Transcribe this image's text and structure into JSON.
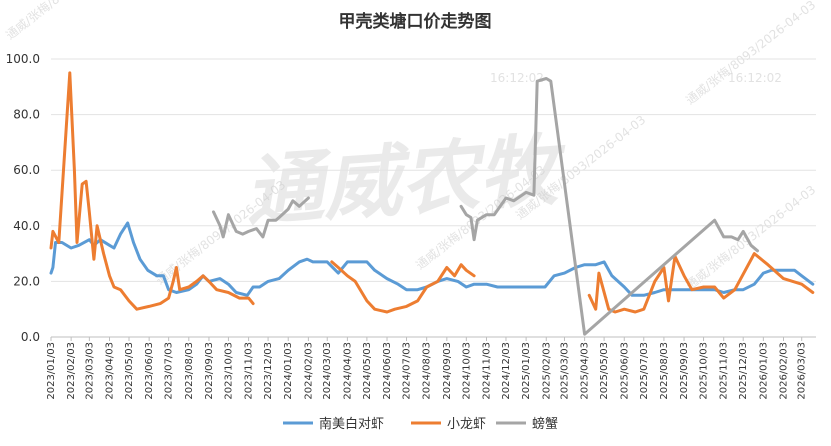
{
  "chart_data": {
    "type": "line",
    "title": "甲壳类塘口价走势图",
    "xlabel": "",
    "ylabel": "",
    "ylim": [
      0,
      100
    ],
    "yticks": [
      "0.0",
      "20.0",
      "40.0",
      "60.0",
      "80.0",
      "100.0"
    ],
    "xticks": [
      "2023/01/03",
      "2023/02/03",
      "2023/03/03",
      "2023/04/03",
      "2023/05/03",
      "2023/06/03",
      "2023/07/03",
      "2023/08/03",
      "2023/09/03",
      "2023/10/03",
      "2023/11/03",
      "2023/12/03",
      "2024/01/03",
      "2024/02/03",
      "2024/03/03",
      "2024/04/03",
      "2024/05/03",
      "2024/06/03",
      "2024/07/03",
      "2024/08/03",
      "2024/09/03",
      "2024/10/03",
      "2024/11/03",
      "2024/12/03",
      "2025/01/03",
      "2025/02/03",
      "2025/03/03",
      "2025/04/03",
      "2025/05/03",
      "2025/06/03",
      "2025/07/03",
      "2025/08/03",
      "2025/09/03",
      "2025/10/03",
      "2025/11/03",
      "2025/12/03",
      "2026/01/03",
      "2026/02/03",
      "2026/03/03"
    ],
    "grid": true,
    "legend_position": "bottom",
    "series": [
      {
        "name": "南美白对虾",
        "color": "#5b9bd5",
        "points": [
          [
            "2023/01/03",
            23
          ],
          [
            "2023/01/06",
            25
          ],
          [
            "2023/01/10",
            34
          ],
          [
            "2023/01/20",
            34
          ],
          [
            "2023/02/03",
            32
          ],
          [
            "2023/02/15",
            33
          ],
          [
            "2023/03/03",
            35
          ],
          [
            "2023/03/10",
            33
          ],
          [
            "2023/03/20",
            35
          ],
          [
            "2023/04/03",
            33
          ],
          [
            "2023/04/10",
            32
          ],
          [
            "2023/04/20",
            37
          ],
          [
            "2023/05/01",
            41
          ],
          [
            "2023/05/10",
            34
          ],
          [
            "2023/05/20",
            28
          ],
          [
            "2023/06/01",
            24
          ],
          [
            "2023/06/15",
            22
          ],
          [
            "2023/06/25",
            22
          ],
          [
            "2023/07/03",
            17
          ],
          [
            "2023/07/15",
            16
          ],
          [
            "2023/08/03",
            17
          ],
          [
            "2023/08/15",
            19
          ],
          [
            "2023/08/25",
            22
          ],
          [
            "2023/09/03",
            20
          ],
          [
            "2023/09/20",
            21
          ],
          [
            "2023/10/03",
            19
          ],
          [
            "2023/10/15",
            16
          ],
          [
            "2023/11/01",
            15
          ],
          [
            "2023/11/10",
            18
          ],
          [
            "2023/11/20",
            18
          ],
          [
            "2023/12/03",
            20
          ],
          [
            "2023/12/20",
            21
          ],
          [
            "2024/01/03",
            24
          ],
          [
            "2024/01/20",
            27
          ],
          [
            "2024/02/01",
            28
          ],
          [
            "2024/02/10",
            27
          ],
          [
            "2024/03/03",
            27
          ],
          [
            "2024/03/20",
            23
          ],
          [
            "2024/04/03",
            27
          ],
          [
            "2024/04/20",
            27
          ],
          [
            "2024/05/03",
            27
          ],
          [
            "2024/05/15",
            24
          ],
          [
            "2024/06/03",
            21
          ],
          [
            "2024/06/20",
            19
          ],
          [
            "2024/07/03",
            17
          ],
          [
            "2024/07/20",
            17
          ],
          [
            "2024/08/03",
            18
          ],
          [
            "2024/08/20",
            20
          ],
          [
            "2024/09/03",
            21
          ],
          [
            "2024/09/20",
            20
          ],
          [
            "2024/10/03",
            18
          ],
          [
            "2024/10/15",
            19
          ],
          [
            "2024/11/03",
            19
          ],
          [
            "2024/11/20",
            18
          ],
          [
            "2024/12/03",
            18
          ],
          [
            "2024/12/20",
            18
          ],
          [
            "2025/01/03",
            18
          ],
          [
            "2025/01/20",
            18
          ],
          [
            "2025/02/01",
            18
          ],
          [
            "2025/02/15",
            22
          ],
          [
            "2025/03/03",
            23
          ],
          [
            "2025/03/20",
            25
          ],
          [
            "2025/04/03",
            26
          ],
          [
            "2025/04/20",
            26
          ],
          [
            "2025/05/03",
            27
          ],
          [
            "2025/05/15",
            22
          ],
          [
            "2025/06/03",
            18
          ],
          [
            "2025/06/15",
            15
          ],
          [
            "2025/07/03",
            15
          ],
          [
            "2025/07/20",
            16
          ],
          [
            "2025/08/03",
            17
          ],
          [
            "2025/08/20",
            17
          ],
          [
            "2025/09/03",
            17
          ],
          [
            "2025/09/20",
            17
          ],
          [
            "2025/10/03",
            17
          ],
          [
            "2025/10/20",
            17
          ],
          [
            "2025/11/03",
            16
          ],
          [
            "2025/11/20",
            17
          ],
          [
            "2025/12/03",
            17
          ],
          [
            "2025/12/20",
            19
          ],
          [
            "2026/01/03",
            23
          ],
          [
            "2026/01/15",
            24
          ],
          [
            "2026/02/03",
            24
          ],
          [
            "2026/02/20",
            24
          ],
          [
            "2026/03/03",
            22
          ],
          [
            "2026/03/20",
            19
          ]
        ]
      },
      {
        "name": "小龙虾",
        "color": "#ed7d31",
        "points": [
          [
            "2023/01/03",
            32
          ],
          [
            "2023/01/06",
            38
          ],
          [
            "2023/01/15",
            34
          ],
          [
            "2023/02/01",
            95
          ],
          [
            "2023/02/08",
            60
          ],
          [
            "2023/02/12",
            34
          ],
          [
            "2023/02/20",
            55
          ],
          [
            "2023/02/26",
            56
          ],
          [
            "2023/03/03",
            45
          ],
          [
            "2023/03/10",
            28
          ],
          [
            "2023/03/15",
            40
          ],
          [
            "2023/03/25",
            30
          ],
          [
            "2023/04/03",
            22
          ],
          [
            "2023/04/10",
            18
          ],
          [
            "2023/04/20",
            17
          ],
          [
            "2023/05/03",
            13
          ],
          [
            "2023/05/15",
            10
          ],
          [
            "2023/06/03",
            11
          ],
          [
            "2023/06/20",
            12
          ],
          [
            "2023/07/03",
            14
          ],
          [
            "2023/07/10",
            20
          ],
          [
            "2023/07/15",
            25
          ],
          [
            "2023/07/20",
            17
          ],
          [
            "2023/08/03",
            18
          ],
          [
            "2023/08/15",
            20
          ],
          [
            "2023/08/25",
            22
          ],
          [
            "2023/09/03",
            20
          ],
          [
            "2023/09/15",
            17
          ],
          [
            "2023/10/03",
            16
          ],
          [
            "2023/10/20",
            14
          ],
          [
            "2023/11/03",
            14
          ],
          [
            "2023/11/10",
            12
          ],
          [
            null,
            null
          ],
          [
            "2024/03/10",
            27
          ],
          [
            "2024/03/20",
            25
          ],
          [
            "2024/04/03",
            22
          ],
          [
            "2024/04/15",
            20
          ],
          [
            "2024/05/03",
            13
          ],
          [
            "2024/05/15",
            10
          ],
          [
            "2024/06/03",
            9
          ],
          [
            "2024/06/15",
            10
          ],
          [
            "2024/07/03",
            11
          ],
          [
            "2024/07/20",
            13
          ],
          [
            "2024/08/03",
            18
          ],
          [
            "2024/08/20",
            20
          ],
          [
            "2024/09/03",
            25
          ],
          [
            "2024/09/15",
            22
          ],
          [
            "2024/09/25",
            26
          ],
          [
            "2024/10/03",
            24
          ],
          [
            "2024/10/15",
            22
          ],
          [
            null,
            null
          ],
          [
            "2025/04/10",
            15
          ],
          [
            "2025/04/20",
            10
          ],
          [
            "2025/04/25",
            23
          ],
          [
            "2025/05/10",
            10
          ],
          [
            "2025/05/20",
            9
          ],
          [
            "2025/06/03",
            10
          ],
          [
            "2025/06/20",
            9
          ],
          [
            "2025/07/03",
            10
          ],
          [
            "2025/07/20",
            20
          ],
          [
            "2025/08/03",
            25
          ],
          [
            "2025/08/10",
            13
          ],
          [
            "2025/08/20",
            29
          ],
          [
            "2025/09/03",
            22
          ],
          [
            "2025/09/15",
            17
          ],
          [
            "2025/10/03",
            18
          ],
          [
            "2025/10/20",
            18
          ],
          [
            "2025/11/03",
            14
          ],
          [
            "2025/11/20",
            17
          ],
          [
            "2025/12/20",
            30
          ],
          [
            "2026/01/10",
            26
          ],
          [
            "2026/02/03",
            21
          ],
          [
            "2026/03/03",
            19
          ],
          [
            "2026/03/20",
            16
          ]
        ]
      },
      {
        "name": "螃蟹",
        "color": "#a5a5a5",
        "points": [
          [
            "2023/09/10",
            45
          ],
          [
            "2023/09/20",
            40
          ],
          [
            "2023/09/25",
            36
          ],
          [
            "2023/10/03",
            44
          ],
          [
            "2023/10/15",
            38
          ],
          [
            "2023/10/25",
            37
          ],
          [
            "2023/11/03",
            38
          ],
          [
            "2023/11/15",
            39
          ],
          [
            "2023/11/25",
            36
          ],
          [
            "2023/12/03",
            42
          ],
          [
            "2023/12/15",
            42
          ],
          [
            "2023/12/20",
            43
          ],
          [
            "2024/01/03",
            46
          ],
          [
            "2024/01/10",
            49
          ],
          [
            "2024/01/20",
            47
          ],
          [
            "2024/02/03",
            50
          ],
          [
            null,
            null
          ],
          [
            "2024/09/25",
            47
          ],
          [
            "2024/10/03",
            44
          ],
          [
            "2024/10/10",
            43
          ],
          [
            "2024/10/15",
            35
          ],
          [
            "2024/10/20",
            42
          ],
          [
            "2024/11/03",
            44
          ],
          [
            "2024/11/15",
            44
          ],
          [
            "2024/12/03",
            50
          ],
          [
            "2024/12/15",
            49
          ],
          [
            "2025/01/03",
            52
          ],
          [
            "2025/01/15",
            51
          ],
          [
            "2025/01/20",
            92
          ],
          [
            "2025/02/03",
            93
          ],
          [
            "2025/02/10",
            92
          ],
          [
            "2025/04/03",
            1
          ],
          [
            "2025/10/20",
            42
          ],
          [
            "2025/11/03",
            36
          ],
          [
            "2025/11/15",
            36
          ],
          [
            "2025/11/25",
            35
          ],
          [
            "2025/12/03",
            38
          ],
          [
            "2025/12/15",
            33
          ],
          [
            "2025/12/25",
            31
          ]
        ]
      }
    ]
  },
  "watermark": {
    "main": "通威农牧",
    "stamps": [
      "通威/张梅/8093/2026-04-03",
      "16:12:02"
    ]
  }
}
